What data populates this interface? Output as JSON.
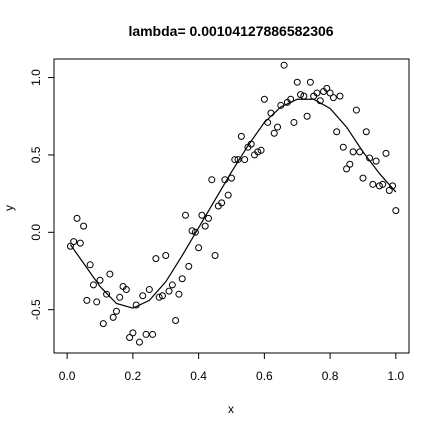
{
  "chart_data": {
    "type": "scatter",
    "title": "lambda= 0.00104127886582306",
    "xlabel": "x",
    "ylabel": "y",
    "xlim": [
      -0.04,
      1.04
    ],
    "ylim": [
      -0.78,
      1.12
    ],
    "grid": false,
    "legend": "none",
    "x_ticks": [
      0.0,
      0.2,
      0.4,
      0.6,
      0.8,
      1.0
    ],
    "x_tick_labels": [
      "0.0",
      "0.2",
      "0.4",
      "0.6",
      "0.8",
      "1.0"
    ],
    "y_ticks": [
      -0.5,
      0.0,
      0.5,
      1.0
    ],
    "y_tick_labels": [
      "-0.5",
      "0.0",
      "0.5",
      "1.0"
    ],
    "series": [
      {
        "kind": "points",
        "x": [
          0.01,
          0.02,
          0.03,
          0.04,
          0.05,
          0.06,
          0.07,
          0.08,
          0.09,
          0.1,
          0.11,
          0.12,
          0.13,
          0.14,
          0.15,
          0.16,
          0.17,
          0.18,
          0.19,
          0.2,
          0.21,
          0.22,
          0.23,
          0.24,
          0.25,
          0.26,
          0.27,
          0.28,
          0.29,
          0.3,
          0.31,
          0.32,
          0.33,
          0.34,
          0.35,
          0.36,
          0.37,
          0.38,
          0.39,
          0.4,
          0.41,
          0.42,
          0.43,
          0.44,
          0.45,
          0.46,
          0.47,
          0.48,
          0.49,
          0.5,
          0.51,
          0.52,
          0.53,
          0.54,
          0.55,
          0.56,
          0.57,
          0.58,
          0.59,
          0.6,
          0.61,
          0.62,
          0.63,
          0.64,
          0.65,
          0.66,
          0.67,
          0.68,
          0.69,
          0.7,
          0.71,
          0.72,
          0.73,
          0.74,
          0.75,
          0.76,
          0.77,
          0.78,
          0.79,
          0.8,
          0.81,
          0.82,
          0.83,
          0.84,
          0.85,
          0.86,
          0.87,
          0.88,
          0.89,
          0.9,
          0.91,
          0.92,
          0.93,
          0.94,
          0.95,
          0.96,
          0.97,
          0.98,
          0.99,
          1.0
        ],
        "y": [
          -0.09,
          -0.06,
          0.09,
          -0.07,
          0.04,
          -0.44,
          -0.21,
          -0.34,
          -0.45,
          -0.31,
          -0.59,
          -0.4,
          -0.27,
          -0.55,
          -0.51,
          -0.42,
          -0.35,
          -0.37,
          -0.68,
          -0.65,
          -0.47,
          -0.71,
          -0.41,
          -0.66,
          -0.37,
          -0.66,
          -0.17,
          -0.42,
          -0.41,
          -0.15,
          -0.38,
          -0.34,
          -0.57,
          -0.4,
          -0.3,
          0.11,
          -0.22,
          0.01,
          0.0,
          -0.1,
          0.11,
          0.04,
          0.09,
          0.34,
          -0.15,
          0.17,
          0.19,
          0.34,
          0.24,
          0.35,
          0.47,
          0.47,
          0.62,
          0.47,
          0.55,
          0.57,
          0.5,
          0.52,
          0.53,
          0.86,
          0.71,
          0.77,
          0.64,
          0.68,
          0.82,
          1.08,
          0.84,
          0.86,
          0.71,
          0.97,
          0.89,
          0.88,
          0.75,
          0.97,
          0.88,
          0.9,
          0.85,
          0.91,
          0.93,
          0.9,
          0.87,
          0.65,
          0.88,
          0.55,
          0.41,
          0.44,
          0.52,
          0.79,
          0.52,
          0.35,
          0.65,
          0.48,
          0.31,
          0.46,
          0.3,
          0.31,
          0.51,
          0.27,
          0.3,
          0.14
        ]
      },
      {
        "kind": "line",
        "x": [
          0.01,
          0.05,
          0.1,
          0.15,
          0.2,
          0.25,
          0.3,
          0.35,
          0.4,
          0.45,
          0.5,
          0.55,
          0.6,
          0.65,
          0.7,
          0.75,
          0.8,
          0.85,
          0.9,
          0.95,
          1.0
        ],
        "y": [
          -0.08,
          -0.2,
          -0.35,
          -0.46,
          -0.49,
          -0.44,
          -0.32,
          -0.15,
          0.03,
          0.21,
          0.39,
          0.56,
          0.71,
          0.81,
          0.86,
          0.86,
          0.8,
          0.68,
          0.52,
          0.38,
          0.26
        ]
      }
    ]
  },
  "colors": {
    "background": "#ffffff",
    "axis": "#000000",
    "points": "#000000",
    "line": "#000000"
  }
}
